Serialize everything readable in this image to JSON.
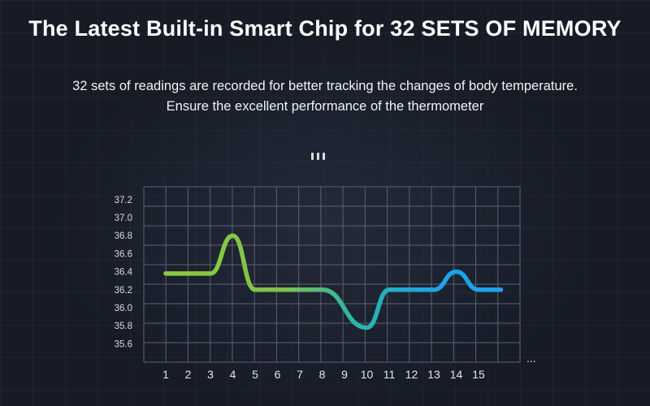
{
  "header": {
    "title": "The Latest Built-in Smart Chip for 32 SETS OF MEMORY",
    "subtitle_line1": "32 sets of readings are recorded for better tracking the changes of body temperature.",
    "subtitle_line2": "Ensure the excellent performance of the thermometer"
  },
  "icons": {
    "device": "indicator-bars-icon"
  },
  "chart_data": {
    "type": "line",
    "title": "",
    "xlabel": "",
    "ylabel": "",
    "x_ticks": [
      "1",
      "2",
      "3",
      "4",
      "5",
      "6",
      "7",
      "8",
      "9",
      "10",
      "11",
      "12",
      "13",
      "14",
      "15"
    ],
    "x_more": "...",
    "y_ticks": [
      "35.6",
      "35.8",
      "36.0",
      "36.2",
      "36.4",
      "36.6",
      "36.8",
      "37.0",
      "37.2"
    ],
    "ylim": [
      35.4,
      37.3
    ],
    "grid": true,
    "colors": {
      "green": "#8ccb3e",
      "teal": "#2bb5a8",
      "blue": "#1da3e8",
      "grid": "#5b6170"
    },
    "series": [
      {
        "x": [
          1,
          3,
          4,
          5,
          8,
          10,
          11,
          13,
          14,
          15,
          16
        ],
        "y": [
          36.38,
          36.38,
          36.8,
          36.2,
          36.2,
          35.78,
          36.2,
          36.2,
          36.4,
          36.2,
          36.2
        ]
      }
    ]
  }
}
